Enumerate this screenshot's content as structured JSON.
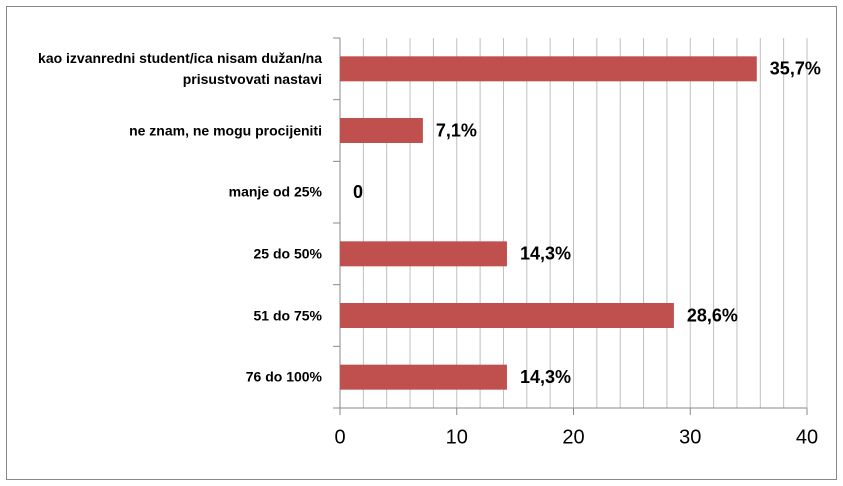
{
  "chart_data": {
    "type": "barh",
    "categories": [
      "kao izvanredni student/ica nisam dužan/na prisustvovati nastavi",
      "ne znam, ne mogu procijeniti",
      "manje od 25%",
      "25 do 50%",
      "51 do 75%",
      "76 do 100%"
    ],
    "values": [
      35.7,
      7.1,
      0,
      14.3,
      28.6,
      14.3
    ],
    "value_labels": [
      "35,7%",
      "7,1%",
      "0",
      "14,3%",
      "28,6%",
      "14,3%"
    ],
    "color": "#c0504d",
    "xlim": [
      0,
      40
    ],
    "xticks": [
      0,
      10,
      20,
      30,
      40
    ],
    "xminor_ticks": [
      2,
      4,
      6,
      8,
      12,
      14,
      16,
      18,
      22,
      24,
      26,
      28,
      32,
      34,
      36,
      38
    ],
    "grid": true
  }
}
